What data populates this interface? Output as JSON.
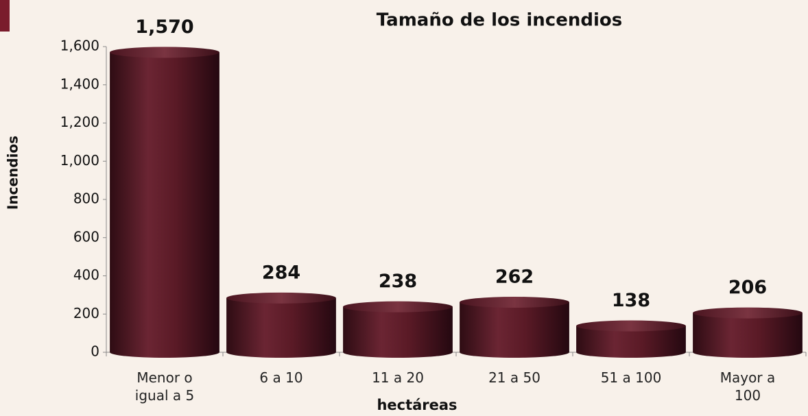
{
  "chart_data": {
    "type": "bar",
    "title": "Tamaño de los incendios",
    "x_label": "hectáreas",
    "y_label": "Incendios",
    "categories": [
      "Menor o igual a 5",
      "6 a 10",
      "11 a 20",
      "21 a 50",
      "51 a 100",
      "Mayor a 100"
    ],
    "values": [
      1570,
      284,
      238,
      262,
      138,
      206
    ],
    "value_labels": [
      "1,570",
      "284",
      "238",
      "262",
      "138",
      "206"
    ],
    "color": "#5a1a26",
    "ylim": [
      0,
      1600
    ],
    "yticks": [
      0,
      200,
      400,
      600,
      800,
      {
        "value": 1000,
        "label": "1,000"
      },
      {
        "value": 1200,
        "label": "1,200"
      },
      {
        "value": 1400,
        "label": "1,400"
      },
      {
        "value": 1600,
        "label": "1,600"
      }
    ],
    "grid": false
  }
}
